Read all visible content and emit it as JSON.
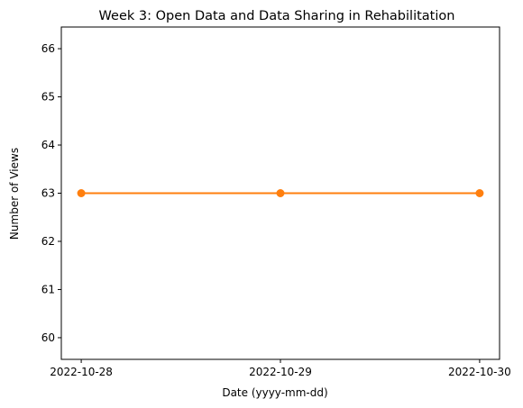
{
  "chart_data": {
    "type": "line",
    "title": "Week 3: Open Data and Data Sharing in Rehabilitation",
    "xlabel": "Date (yyyy-mm-dd)",
    "ylabel": "Number of Views",
    "x": [
      "2022-10-28",
      "2022-10-29",
      "2022-10-30"
    ],
    "series": [
      {
        "values": [
          63,
          63,
          63
        ],
        "color": "#ff7f0e",
        "marker": "circle"
      }
    ],
    "ylim": [
      59.55,
      66.45
    ],
    "yticks": [
      60,
      61,
      62,
      63,
      64,
      65,
      66
    ],
    "grid": false,
    "legend": "none"
  }
}
